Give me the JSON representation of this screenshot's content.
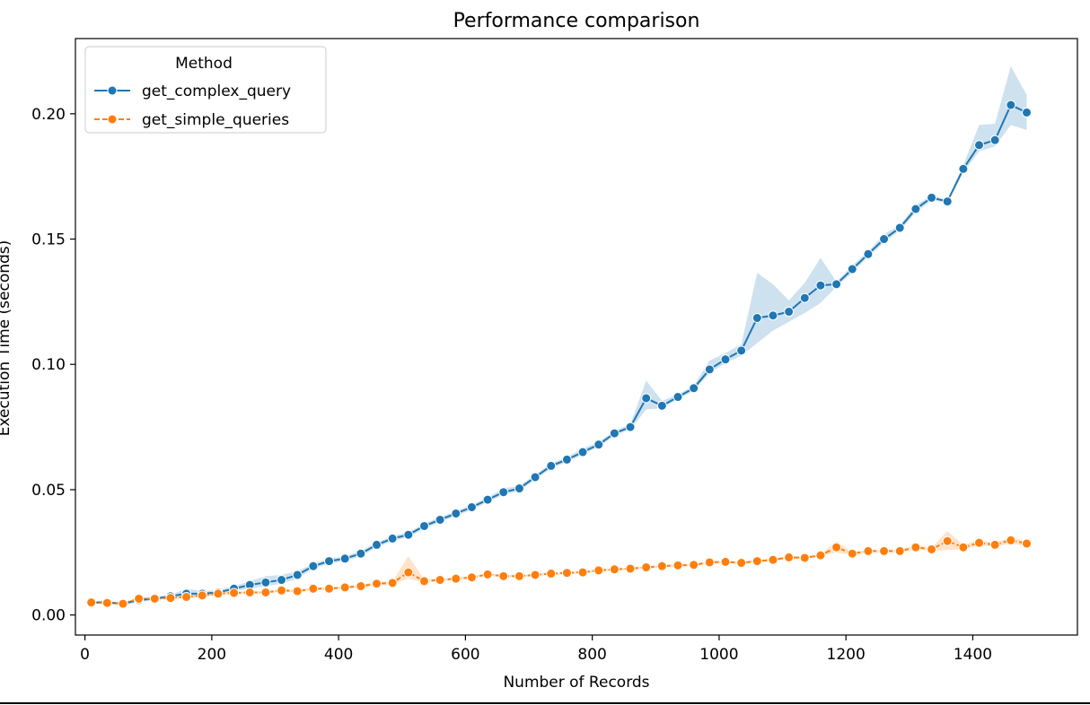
{
  "chart_data": {
    "type": "line",
    "title": "Performance comparison",
    "xlabel": "Number of Records",
    "ylabel": "Execution Time (seconds)",
    "xlim": [
      -15,
      1565
    ],
    "ylim": [
      -0.008,
      0.23
    ],
    "xticks": [
      0,
      200,
      400,
      600,
      800,
      1000,
      1200,
      1400
    ],
    "yticks": [
      0.0,
      0.05,
      0.1,
      0.15,
      0.2
    ],
    "xtick_labels": [
      "0",
      "200",
      "400",
      "600",
      "800",
      "1000",
      "1200",
      "1400"
    ],
    "ytick_labels": [
      "0.00",
      "0.05",
      "0.10",
      "0.15",
      "0.20"
    ],
    "grid": false,
    "legend": {
      "title": "Method",
      "placement": "top-left"
    },
    "x": [
      10,
      35,
      60,
      85,
      110,
      135,
      160,
      185,
      210,
      235,
      260,
      285,
      310,
      335,
      360,
      385,
      410,
      435,
      460,
      485,
      510,
      535,
      560,
      585,
      610,
      635,
      660,
      685,
      710,
      735,
      760,
      785,
      810,
      835,
      860,
      885,
      910,
      935,
      960,
      985,
      1010,
      1035,
      1060,
      1085,
      1110,
      1135,
      1160,
      1185,
      1210,
      1235,
      1260,
      1285,
      1310,
      1335,
      1360,
      1385,
      1410,
      1435,
      1460,
      1485
    ],
    "series": [
      {
        "name": "get_complex_query",
        "color": "#1f77b4",
        "values": [
          0.005,
          0.005,
          0.0045,
          0.006,
          0.0065,
          0.0075,
          0.0085,
          0.0085,
          0.009,
          0.0105,
          0.012,
          0.013,
          0.014,
          0.016,
          0.0195,
          0.0215,
          0.0225,
          0.0245,
          0.028,
          0.0305,
          0.032,
          0.0355,
          0.038,
          0.0405,
          0.043,
          0.046,
          0.049,
          0.0505,
          0.055,
          0.0595,
          0.062,
          0.065,
          0.068,
          0.0725,
          0.075,
          0.0865,
          0.0835,
          0.087,
          0.0905,
          0.098,
          0.102,
          0.1055,
          0.1185,
          0.1195,
          0.121,
          0.1265,
          0.1315,
          0.132,
          0.138,
          0.144,
          0.15,
          0.1545,
          0.162,
          0.1665,
          0.165,
          0.178,
          0.1875,
          0.1895,
          0.2035,
          0.2005
        ],
        "ci_low": [
          0.0045,
          0.0045,
          0.004,
          0.005,
          0.006,
          0.007,
          0.0075,
          0.0075,
          0.0085,
          0.0095,
          0.0105,
          0.0115,
          0.0125,
          0.0145,
          0.0185,
          0.0205,
          0.0215,
          0.0235,
          0.027,
          0.0295,
          0.031,
          0.0345,
          0.037,
          0.0395,
          0.042,
          0.045,
          0.048,
          0.0495,
          0.054,
          0.0585,
          0.061,
          0.064,
          0.067,
          0.0715,
          0.074,
          0.082,
          0.0825,
          0.086,
          0.0895,
          0.0965,
          0.1005,
          0.1035,
          0.1085,
          0.1135,
          0.117,
          0.1205,
          0.1245,
          0.131,
          0.1365,
          0.143,
          0.1485,
          0.1535,
          0.1605,
          0.1655,
          0.1645,
          0.1765,
          0.185,
          0.187,
          0.1955,
          0.1935
        ],
        "ci_high": [
          0.0055,
          0.0055,
          0.005,
          0.007,
          0.007,
          0.008,
          0.0105,
          0.0095,
          0.01,
          0.0115,
          0.0135,
          0.0155,
          0.016,
          0.0175,
          0.0205,
          0.0225,
          0.0235,
          0.0255,
          0.029,
          0.0315,
          0.033,
          0.0365,
          0.039,
          0.0415,
          0.044,
          0.047,
          0.0505,
          0.0515,
          0.056,
          0.0605,
          0.063,
          0.0665,
          0.069,
          0.0735,
          0.076,
          0.0935,
          0.0855,
          0.088,
          0.0915,
          0.1015,
          0.1045,
          0.108,
          0.1365,
          0.132,
          0.1255,
          0.1325,
          0.1425,
          0.133,
          0.1395,
          0.145,
          0.152,
          0.1555,
          0.1635,
          0.1675,
          0.1655,
          0.1795,
          0.1955,
          0.196,
          0.219,
          0.2075
        ]
      },
      {
        "name": "get_simple_queries",
        "color": "#ff7f0e",
        "values": [
          0.005,
          0.0048,
          0.0045,
          0.0065,
          0.0065,
          0.0068,
          0.0072,
          0.0078,
          0.0085,
          0.0088,
          0.009,
          0.009,
          0.0098,
          0.0095,
          0.0105,
          0.0105,
          0.011,
          0.0115,
          0.0125,
          0.0128,
          0.017,
          0.0135,
          0.014,
          0.0145,
          0.015,
          0.0162,
          0.0155,
          0.0155,
          0.016,
          0.0165,
          0.0168,
          0.017,
          0.0178,
          0.0182,
          0.0185,
          0.019,
          0.0195,
          0.0198,
          0.02,
          0.021,
          0.0212,
          0.0208,
          0.0215,
          0.022,
          0.023,
          0.0228,
          0.0238,
          0.027,
          0.0245,
          0.0255,
          0.0255,
          0.0255,
          0.027,
          0.0262,
          0.0295,
          0.027,
          0.0288,
          0.028,
          0.0298,
          0.0285
        ],
        "ci_low": [
          0.0045,
          0.0044,
          0.004,
          0.006,
          0.006,
          0.0063,
          0.0066,
          0.0073,
          0.008,
          0.0083,
          0.0085,
          0.0085,
          0.0093,
          0.009,
          0.01,
          0.01,
          0.0105,
          0.011,
          0.0118,
          0.0122,
          0.0145,
          0.0128,
          0.0135,
          0.014,
          0.0145,
          0.0157,
          0.015,
          0.015,
          0.0155,
          0.016,
          0.0163,
          0.0165,
          0.0173,
          0.0177,
          0.018,
          0.0185,
          0.019,
          0.0193,
          0.0195,
          0.0205,
          0.0207,
          0.0203,
          0.021,
          0.0215,
          0.0225,
          0.0223,
          0.0233,
          0.025,
          0.024,
          0.025,
          0.025,
          0.0248,
          0.0262,
          0.0255,
          0.026,
          0.026,
          0.0278,
          0.0272,
          0.0285,
          0.0275
        ],
        "ci_high": [
          0.0055,
          0.0052,
          0.005,
          0.007,
          0.007,
          0.0073,
          0.0078,
          0.0083,
          0.009,
          0.0093,
          0.0095,
          0.0095,
          0.0103,
          0.01,
          0.011,
          0.011,
          0.0115,
          0.012,
          0.0132,
          0.0134,
          0.0235,
          0.0142,
          0.0145,
          0.015,
          0.0155,
          0.0167,
          0.016,
          0.016,
          0.0165,
          0.017,
          0.0173,
          0.0175,
          0.0183,
          0.0187,
          0.019,
          0.0195,
          0.02,
          0.0203,
          0.0205,
          0.0215,
          0.0217,
          0.0213,
          0.022,
          0.0225,
          0.0235,
          0.0233,
          0.0243,
          0.0295,
          0.025,
          0.026,
          0.026,
          0.0262,
          0.0278,
          0.0269,
          0.0335,
          0.028,
          0.0298,
          0.0288,
          0.031,
          0.0295
        ]
      }
    ]
  }
}
